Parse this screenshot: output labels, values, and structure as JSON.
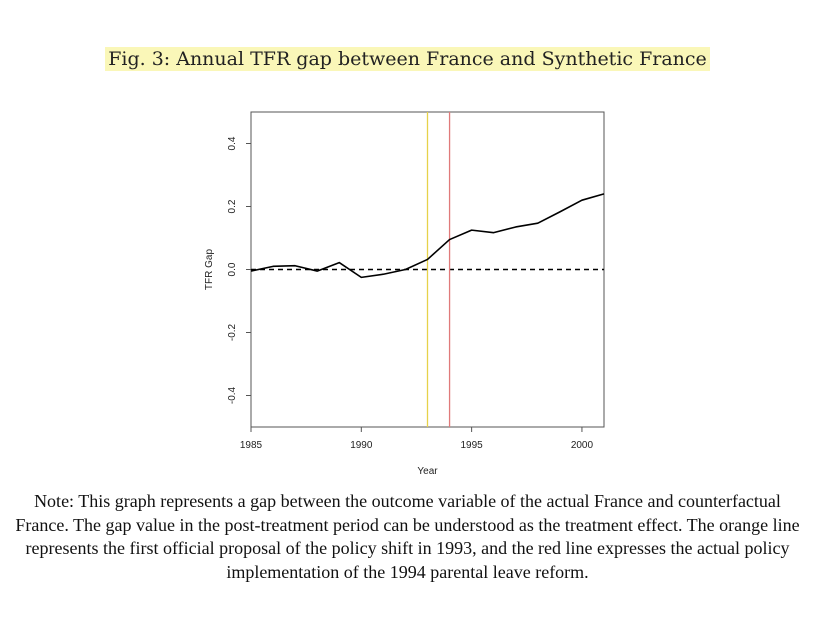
{
  "figure": {
    "caption": "Fig. 3: Annual TFR gap between France and Synthetic France",
    "note": "Note: This graph represents a gap between the outcome variable of the actual France and counterfactual France. The gap value in the post-treatment period can be understood as the treatment effect. The orange line represents the first official proposal of the policy shift in 1993, and the red line expresses the actual policy implementation of the 1994 parental leave reform."
  },
  "chart_data": {
    "type": "line",
    "title": "",
    "xlabel": "Year",
    "ylabel": "TFR Gap",
    "xlim": [
      1985,
      2001
    ],
    "ylim": [
      -0.5,
      0.5
    ],
    "x_ticks": [
      1985,
      1990,
      1995,
      2000
    ],
    "y_ticks": [
      -0.4,
      -0.2,
      0.0,
      0.2,
      0.4
    ],
    "y_tick_labels": [
      "-0.4",
      "-0.2",
      "0.0",
      "0.2",
      "0.4"
    ],
    "series": [
      {
        "x": [
          1985,
          1986,
          1987,
          1988,
          1989,
          1990,
          1991,
          1992,
          1993,
          1994,
          1995,
          1996,
          1997,
          1998,
          1999,
          2000,
          2001
        ],
        "values": [
          -0.005,
          0.01,
          0.012,
          -0.005,
          0.022,
          -0.025,
          -0.015,
          0.0,
          0.032,
          0.095,
          0.125,
          0.117,
          0.135,
          0.147,
          0.183,
          0.22,
          0.24
        ],
        "color": "#000000"
      }
    ],
    "reference_lines": [
      {
        "orientation": "horizontal",
        "value": 0.0,
        "style": "dashed",
        "color": "#000000"
      },
      {
        "orientation": "vertical",
        "value": 1993,
        "color": "#e6d24a"
      },
      {
        "orientation": "vertical",
        "value": 1994,
        "color": "#e07a7a"
      }
    ],
    "grid": false,
    "legend": "none"
  }
}
